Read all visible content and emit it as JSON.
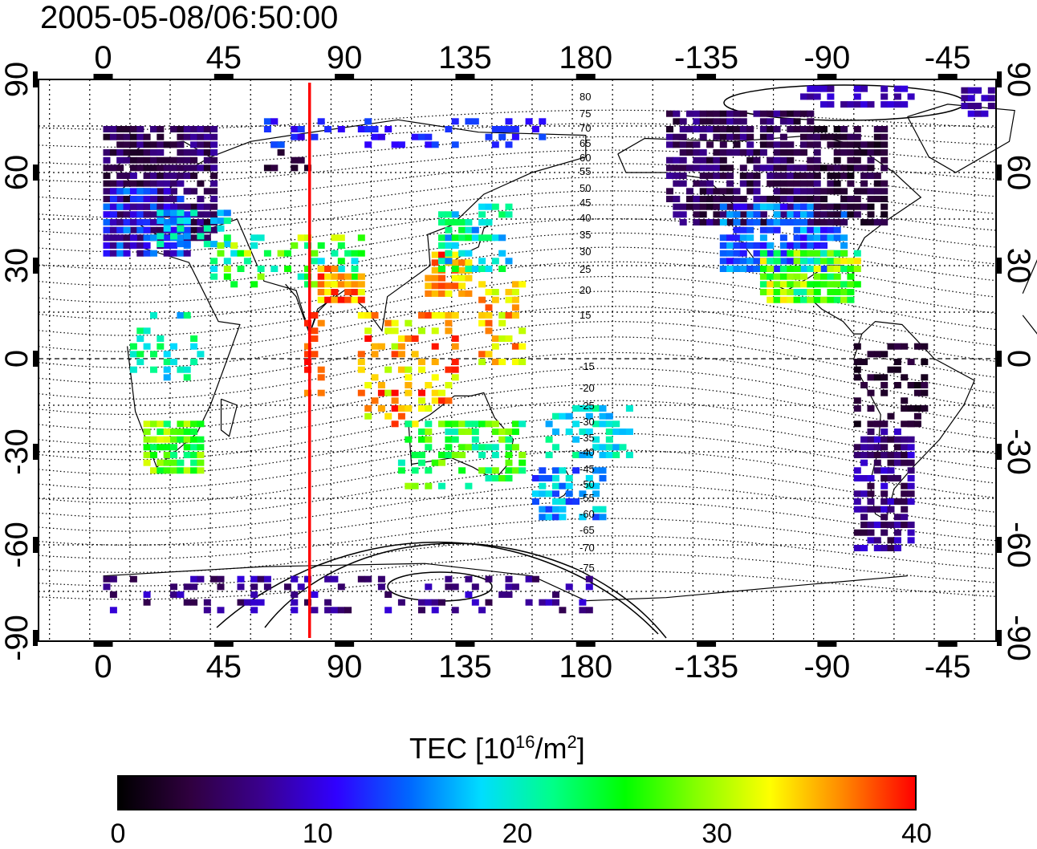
{
  "title": "2005-05-08/06:50:00",
  "map": {
    "top_lon_ticks": [
      "0",
      "45",
      "90",
      "135",
      "180",
      "-135",
      "-90",
      "-45"
    ],
    "bottom_lon_ticks": [
      "0",
      "45",
      "90",
      "135",
      "180",
      "-135",
      "-90",
      "-45"
    ],
    "left_lat_ticks": [
      "90",
      "60",
      "30",
      "0",
      "-30",
      "-60",
      "-90"
    ],
    "right_lat_ticks": [
      "90",
      "60",
      "30",
      "0",
      "-30",
      "-60",
      "-90"
    ],
    "red_meridian_lon": 77,
    "contour_labels_north": [
      "80",
      "75",
      "70",
      "65",
      "60",
      "55",
      "50",
      "45",
      "40",
      "35",
      "30",
      "25",
      "20",
      "15"
    ],
    "contour_labels_south": [
      "-15",
      "-20",
      "-25",
      "-30",
      "-35",
      "-40",
      "-45",
      "-50",
      "-55",
      "-60",
      "-65",
      "-70",
      "-75"
    ]
  },
  "colorbar": {
    "title_prefix": "TEC  [10",
    "title_exp1": "16",
    "title_mid": "/m",
    "title_exp2": "2",
    "title_suffix": "]",
    "min": 0,
    "max": 40,
    "tick_labels": [
      "0",
      "10",
      "20",
      "30",
      "40"
    ],
    "colors": [
      "#000000",
      "#300040",
      "#3a0090",
      "#3000ff",
      "#0066ff",
      "#00ddff",
      "#00ff88",
      "#00ff00",
      "#88ff00",
      "#ffff00",
      "#ff8800",
      "#ff0000"
    ]
  }
}
